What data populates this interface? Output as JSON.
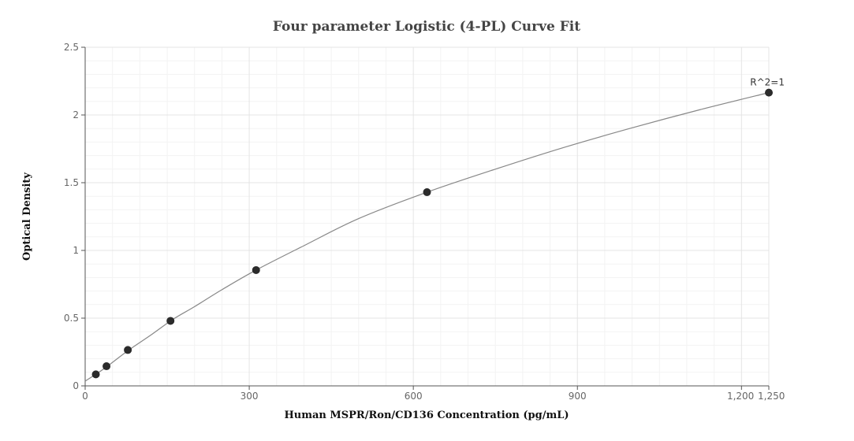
{
  "chart_data": {
    "type": "scatter",
    "title": "Four parameter Logistic (4-PL) Curve Fit",
    "xlabel": "Human MSPR/Ron/CD136 Concentration (pg/mL)",
    "ylabel": "Optical Density",
    "xlim": [
      0,
      1250
    ],
    "ylim": [
      0,
      2.5
    ],
    "x_ticks": [
      0,
      300,
      600,
      900,
      1200,
      1250
    ],
    "x_tick_labels": [
      "0",
      "300",
      "600",
      "900",
      "1,200",
      "1,250"
    ],
    "y_ticks": [
      0,
      0.5,
      1,
      1.5,
      2,
      2.5
    ],
    "y_tick_labels": [
      "0",
      "0.5",
      "1",
      "1.5",
      "2",
      "2.5"
    ],
    "grid": true,
    "series": [
      {
        "x": [
          19.5,
          39,
          78,
          156,
          312.5,
          625,
          1250
        ],
        "y": [
          0.085,
          0.145,
          0.265,
          0.48,
          0.855,
          1.43,
          2.165
        ]
      }
    ],
    "fit_curve": {
      "x": [
        0,
        20,
        40,
        80,
        120,
        160,
        200,
        250,
        312.5,
        400,
        500,
        625,
        750,
        875,
        1000,
        1125,
        1250
      ],
      "y": [
        0.035,
        0.087,
        0.143,
        0.265,
        0.375,
        0.49,
        0.585,
        0.71,
        0.855,
        1.035,
        1.235,
        1.43,
        1.6,
        1.76,
        1.905,
        2.04,
        2.165
      ]
    },
    "annotations": [
      {
        "text": "R^2=1",
        "x": 1250,
        "y": 2.165
      }
    ]
  }
}
